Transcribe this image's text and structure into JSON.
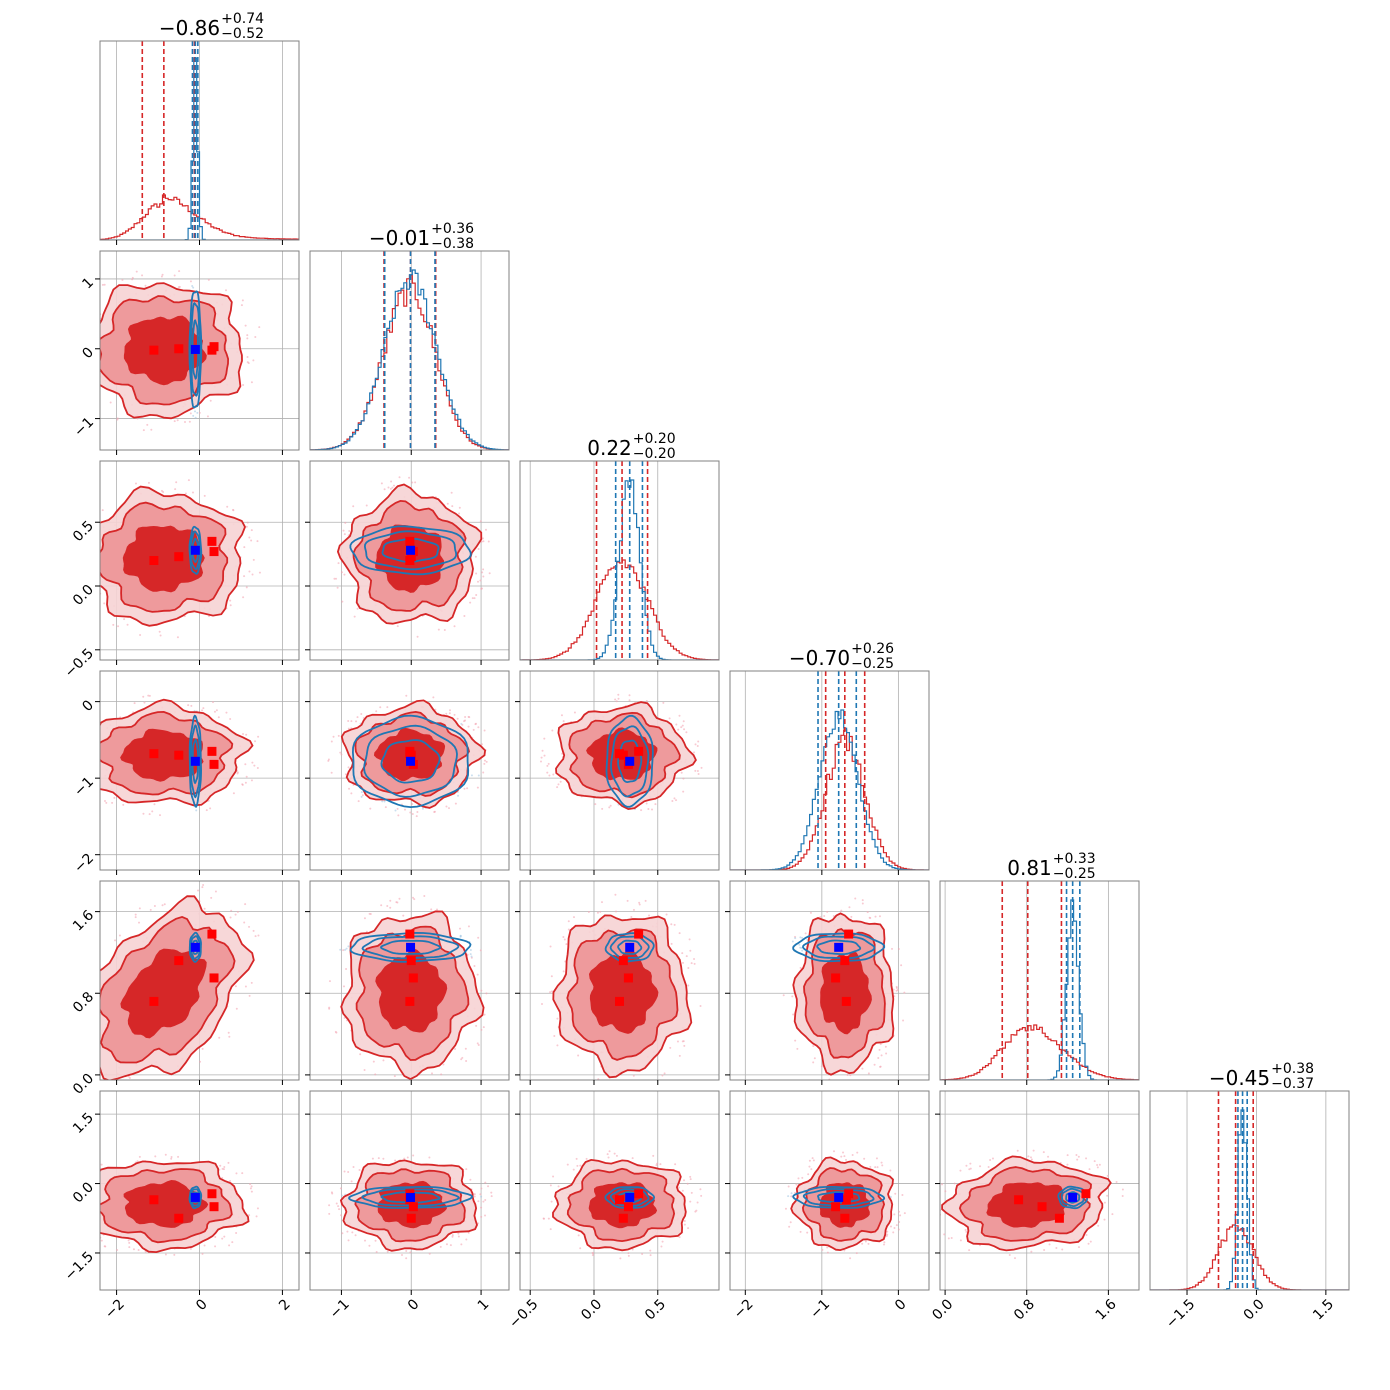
{
  "chart_data": {
    "type": "corner",
    "title_values": [
      {
        "median": "−0.86",
        "plus": "+0.74",
        "minus": "−0.52"
      },
      {
        "median": "−0.01",
        "plus": "+0.36",
        "minus": "−0.38"
      },
      {
        "median": "0.22",
        "plus": "+0.20",
        "minus": "−0.20"
      },
      {
        "median": "−0.70",
        "plus": "+0.26",
        "minus": "−0.25"
      },
      {
        "median": "0.81",
        "plus": "+0.33",
        "minus": "−0.25"
      },
      {
        "median": "−0.45",
        "plus": "+0.38",
        "minus": "−0.37"
      }
    ],
    "parameters": [
      {
        "range": [
          -2.4,
          2.4
        ],
        "ticks": [
          -2,
          0,
          2
        ],
        "tick_labels": [
          "−2",
          "0",
          "2"
        ]
      },
      {
        "range": [
          -1.45,
          1.4
        ],
        "ticks": [
          -1,
          0,
          1
        ],
        "tick_labels": [
          "−1",
          "0",
          "1"
        ]
      },
      {
        "range": [
          -0.58,
          0.98
        ],
        "ticks": [
          -0.5,
          0.0,
          0.5
        ],
        "tick_labels": [
          "−0.5",
          "0.0",
          "0.5"
        ]
      },
      {
        "range": [
          -2.2,
          0.4
        ],
        "ticks": [
          -2,
          -1,
          0
        ],
        "tick_labels": [
          "−2",
          "−1",
          "0"
        ]
      },
      {
        "range": [
          -0.05,
          1.9
        ],
        "ticks": [
          0.0,
          0.8,
          1.6
        ],
        "tick_labels": [
          "0.0",
          "0.8",
          "1.6"
        ]
      },
      {
        "range": [
          -2.3,
          2.0
        ],
        "ticks": [
          -1.5,
          0.0,
          1.5
        ],
        "tick_labels": [
          "−1.5",
          "0.0",
          "1.5"
        ]
      }
    ],
    "red": {
      "color": "#d62728",
      "median": [
        -0.86,
        -0.01,
        0.22,
        -0.7,
        0.81,
        -0.45
      ],
      "minus": [
        0.52,
        0.38,
        0.2,
        0.25,
        0.25,
        0.37
      ],
      "plus": [
        0.74,
        0.36,
        0.2,
        0.26,
        0.33,
        0.38
      ],
      "sigma": [
        0.75,
        0.37,
        0.2,
        0.25,
        0.3,
        0.37
      ],
      "quantiles": [
        [
          -1.38,
          -0.86,
          -0.12
        ],
        [
          -0.39,
          -0.01,
          0.35
        ],
        [
          0.02,
          0.22,
          0.42
        ],
        [
          -0.95,
          -0.7,
          -0.44
        ],
        [
          0.56,
          0.81,
          1.14
        ],
        [
          -0.82,
          -0.45,
          -0.07
        ]
      ]
    },
    "blue": {
      "color": "#1f77b4",
      "median": [
        -0.1,
        -0.01,
        0.28,
        -0.78,
        1.25,
        -0.3
      ],
      "sigma": [
        0.06,
        0.37,
        0.08,
        0.25,
        0.06,
        0.1
      ],
      "quantiles": [
        [
          -0.17,
          -0.1,
          -0.04
        ],
        [
          -0.38,
          -0.01,
          0.34
        ],
        [
          0.17,
          0.28,
          0.38
        ],
        [
          -1.05,
          -0.78,
          -0.55
        ],
        [
          1.19,
          1.25,
          1.32
        ],
        [
          -0.4,
          -0.3,
          -0.2
        ]
      ]
    },
    "truth_point": [
      -0.1,
      -0.01,
      0.28,
      -0.78,
      1.25,
      -0.3
    ],
    "red_markers": [
      [
        -1.1,
        -0.02,
        0.2,
        -0.68,
        0.72,
        -0.35
      ],
      [
        -0.5,
        0.0,
        0.23,
        -0.7,
        1.12,
        -0.75
      ],
      [
        0.3,
        -0.02,
        0.35,
        -0.65,
        1.38,
        -0.22
      ],
      [
        0.35,
        0.03,
        0.27,
        -0.82,
        0.95,
        -0.5
      ]
    ],
    "grid": true
  }
}
